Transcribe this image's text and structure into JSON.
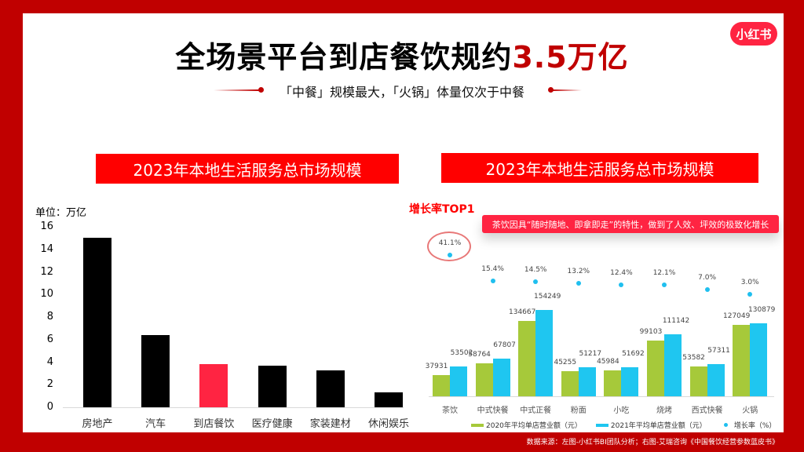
{
  "header": {
    "title_main": "全场景平台到店餐饮规约",
    "title_highlight": "3.5万亿",
    "subtitle": "「中餐」规模最大，「火锅」体量仅次于中餐",
    "logo_text": "小红书"
  },
  "colors": {
    "frame": "#c00000",
    "banner": "#ff0000",
    "highlight_bar": "#ff2442",
    "bar_default": "#000000",
    "series_2020": "#a6c93a",
    "series_2021": "#1fc6f0",
    "growth_dot": "#1fbfef"
  },
  "left_panel": {
    "banner": "2023年本地生活服务总市场规模",
    "unit_label": "单位：万亿"
  },
  "right_panel": {
    "banner": "2023年本地生活服务总市场规模",
    "top1_label": "增长率TOP1",
    "callout": "茶饮因具“随时随地、即拿即走”的特性，做到了人效、坪效的极致化增长"
  },
  "footer": {
    "source": "数据来源：左图-小红书BI团队分析；右图-艾瑞咨询《中国餐饮经营参数蓝皮书》"
  },
  "chart_data": [
    {
      "type": "bar",
      "title": "2023年本地生活服务总市场规模",
      "ylabel": "单位：万亿",
      "xlabel": "",
      "categories": [
        "房地产",
        "汽车",
        "到店餐饮",
        "医疗健康",
        "家装建材",
        "休闲娱乐"
      ],
      "values": [
        15.0,
        6.4,
        3.8,
        3.7,
        3.3,
        1.3
      ],
      "highlight_index": 2,
      "ylim": [
        0,
        16
      ],
      "yticks": [
        "0",
        "2",
        "4",
        "6",
        "8",
        "10",
        "12",
        "14",
        "16"
      ],
      "grid": false,
      "legend": null
    },
    {
      "type": "bar",
      "title": "2023年本地生活服务总市场规模",
      "xlabel": "",
      "ylabel": "",
      "categories": [
        "茶饮",
        "中式快餐",
        "中式正餐",
        "粉面",
        "小吃",
        "烧烤",
        "西式快餐",
        "火锅"
      ],
      "series": [
        {
          "name": "2020年平均单店营业额（元）",
          "values": [
            37931,
            58764,
            134667,
            45255,
            45984,
            99103,
            53582,
            127049
          ]
        },
        {
          "name": "2021年平均单店营业额（元）",
          "values": [
            53502,
            67807,
            154249,
            51217,
            51692,
            111142,
            57311,
            130879
          ]
        },
        {
          "name": "增长率（%）",
          "type": "scatter",
          "values": [
            41.1,
            15.4,
            14.5,
            13.2,
            12.4,
            12.1,
            7.0,
            3.0
          ],
          "labels": [
            "41.1%",
            "15.4%",
            "14.5%",
            "13.2%",
            "12.4%",
            "12.1%",
            "7.0%",
            "3.0%"
          ]
        }
      ],
      "annotations": [
        "增长率TOP1",
        "茶饮因具“随时随地、即拿即走”的特性，做到了人效、坪效的极致化增长"
      ],
      "legend_position": "bottom",
      "grid": false
    }
  ]
}
